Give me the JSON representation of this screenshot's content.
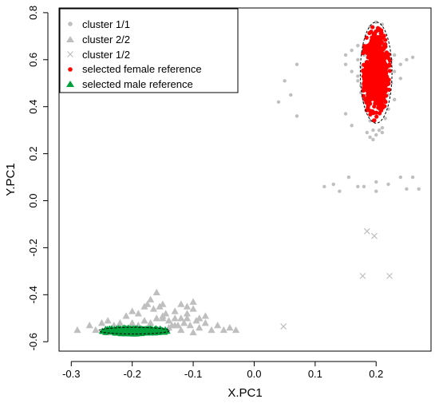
{
  "chart_data": {
    "type": "scatter",
    "xlabel": "X.PC1",
    "ylabel": "Y.PC1",
    "xlim": [
      -0.32,
      0.29
    ],
    "ylim": [
      -0.64,
      0.82
    ],
    "xticks": [
      -0.3,
      -0.2,
      -0.1,
      0.0,
      0.1,
      0.2
    ],
    "yticks": [
      -0.6,
      -0.4,
      -0.2,
      0.0,
      0.2,
      0.4,
      0.6,
      0.8
    ],
    "xtick_labels": [
      "-0.3",
      "-0.2",
      "-0.1",
      "0.0",
      "0.1",
      "0.2"
    ],
    "ytick_labels": [
      "-0.6",
      "-0.4",
      "-0.2",
      "0.0",
      "0.2",
      "0.4",
      "0.6",
      "0.8"
    ],
    "legend_position": "top-left",
    "series": [
      {
        "name": "cluster 1/1",
        "marker": "circle",
        "color": "#bfbfbf",
        "x": [
          0.04,
          0.06,
          0.07,
          0.05,
          0.07,
          0.115,
          0.13,
          0.14,
          0.155,
          0.17,
          0.18,
          0.15,
          0.16,
          0.2,
          0.2,
          0.22,
          0.24,
          0.25,
          0.26,
          0.27,
          0.15,
          0.15,
          0.16,
          0.16,
          0.17,
          0.17,
          0.17,
          0.175,
          0.175,
          0.18,
          0.18,
          0.18,
          0.185,
          0.185,
          0.19,
          0.19,
          0.195,
          0.195,
          0.21,
          0.21,
          0.215,
          0.215,
          0.22,
          0.22,
          0.225,
          0.225,
          0.23,
          0.23,
          0.24,
          0.24,
          0.25,
          0.26,
          0.185,
          0.19,
          0.195,
          0.2,
          0.205,
          0.21,
          0.19,
          0.2,
          0.205,
          0.21,
          0.17,
          0.175,
          0.18,
          0.22,
          0.23
        ],
        "y": [
          0.42,
          0.45,
          0.36,
          0.51,
          0.58,
          0.06,
          0.07,
          0.04,
          0.1,
          0.06,
          0.06,
          0.37,
          0.32,
          0.08,
          0.04,
          0.07,
          0.1,
          0.05,
          0.1,
          0.05,
          0.62,
          0.58,
          0.64,
          0.55,
          0.6,
          0.53,
          0.66,
          0.57,
          0.49,
          0.62,
          0.54,
          0.44,
          0.58,
          0.39,
          0.65,
          0.34,
          0.3,
          0.68,
          0.7,
          0.31,
          0.63,
          0.35,
          0.57,
          0.45,
          0.6,
          0.5,
          0.62,
          0.55,
          0.58,
          0.52,
          0.6,
          0.61,
          0.29,
          0.27,
          0.26,
          0.28,
          0.3,
          0.29,
          0.74,
          0.76,
          0.72,
          0.75,
          0.51,
          0.46,
          0.42,
          0.39,
          0.43
        ]
      },
      {
        "name": "cluster 2/2",
        "marker": "triangle",
        "color": "#bfbfbf",
        "x": [
          -0.29,
          -0.27,
          -0.26,
          -0.25,
          -0.24,
          -0.23,
          -0.22,
          -0.21,
          -0.2,
          -0.19,
          -0.18,
          -0.175,
          -0.17,
          -0.165,
          -0.16,
          -0.155,
          -0.15,
          -0.145,
          -0.14,
          -0.135,
          -0.13,
          -0.125,
          -0.12,
          -0.115,
          -0.11,
          -0.105,
          -0.1,
          -0.095,
          -0.09,
          -0.08,
          -0.07,
          -0.06,
          -0.05,
          -0.04,
          -0.03,
          -0.24,
          -0.22,
          -0.2,
          -0.19,
          -0.18,
          -0.17,
          -0.16,
          -0.15,
          -0.14,
          -0.13,
          -0.12,
          -0.11,
          -0.1,
          -0.09,
          -0.08,
          -0.13,
          -0.12,
          -0.11,
          -0.1,
          -0.15
        ],
        "y": [
          -0.55,
          -0.53,
          -0.55,
          -0.52,
          -0.51,
          -0.53,
          -0.52,
          -0.49,
          -0.47,
          -0.48,
          -0.45,
          -0.44,
          -0.42,
          -0.46,
          -0.39,
          -0.45,
          -0.5,
          -0.48,
          -0.51,
          -0.53,
          -0.5,
          -0.53,
          -0.55,
          -0.52,
          -0.5,
          -0.53,
          -0.56,
          -0.51,
          -0.54,
          -0.52,
          -0.55,
          -0.53,
          -0.55,
          -0.54,
          -0.55,
          -0.56,
          -0.54,
          -0.52,
          -0.53,
          -0.51,
          -0.52,
          -0.5,
          -0.49,
          -0.54,
          -0.53,
          -0.5,
          -0.48,
          -0.46,
          -0.5,
          -0.49,
          -0.47,
          -0.44,
          -0.45,
          -0.43,
          -0.44
        ]
      },
      {
        "name": "cluster 1/2",
        "marker": "x",
        "color": "#bfbfbf",
        "x": [
          0.048,
          0.178,
          0.185,
          0.197,
          0.222
        ],
        "y": [
          -0.535,
          -0.32,
          -0.13,
          -0.15,
          -0.32
        ]
      },
      {
        "name": "selected female reference",
        "marker": "circle",
        "color": "#ff0000",
        "ellipse": {
          "cx": 0.2,
          "cy": 0.545,
          "rx": 0.026,
          "ry": 0.215
        },
        "x": [],
        "y": []
      },
      {
        "name": "selected male reference",
        "marker": "triangle",
        "color": "#00a03c",
        "ellipse": {
          "cx": -0.197,
          "cy": -0.553,
          "rx": 0.058,
          "ry": 0.014
        },
        "x": [],
        "y": []
      }
    ]
  }
}
